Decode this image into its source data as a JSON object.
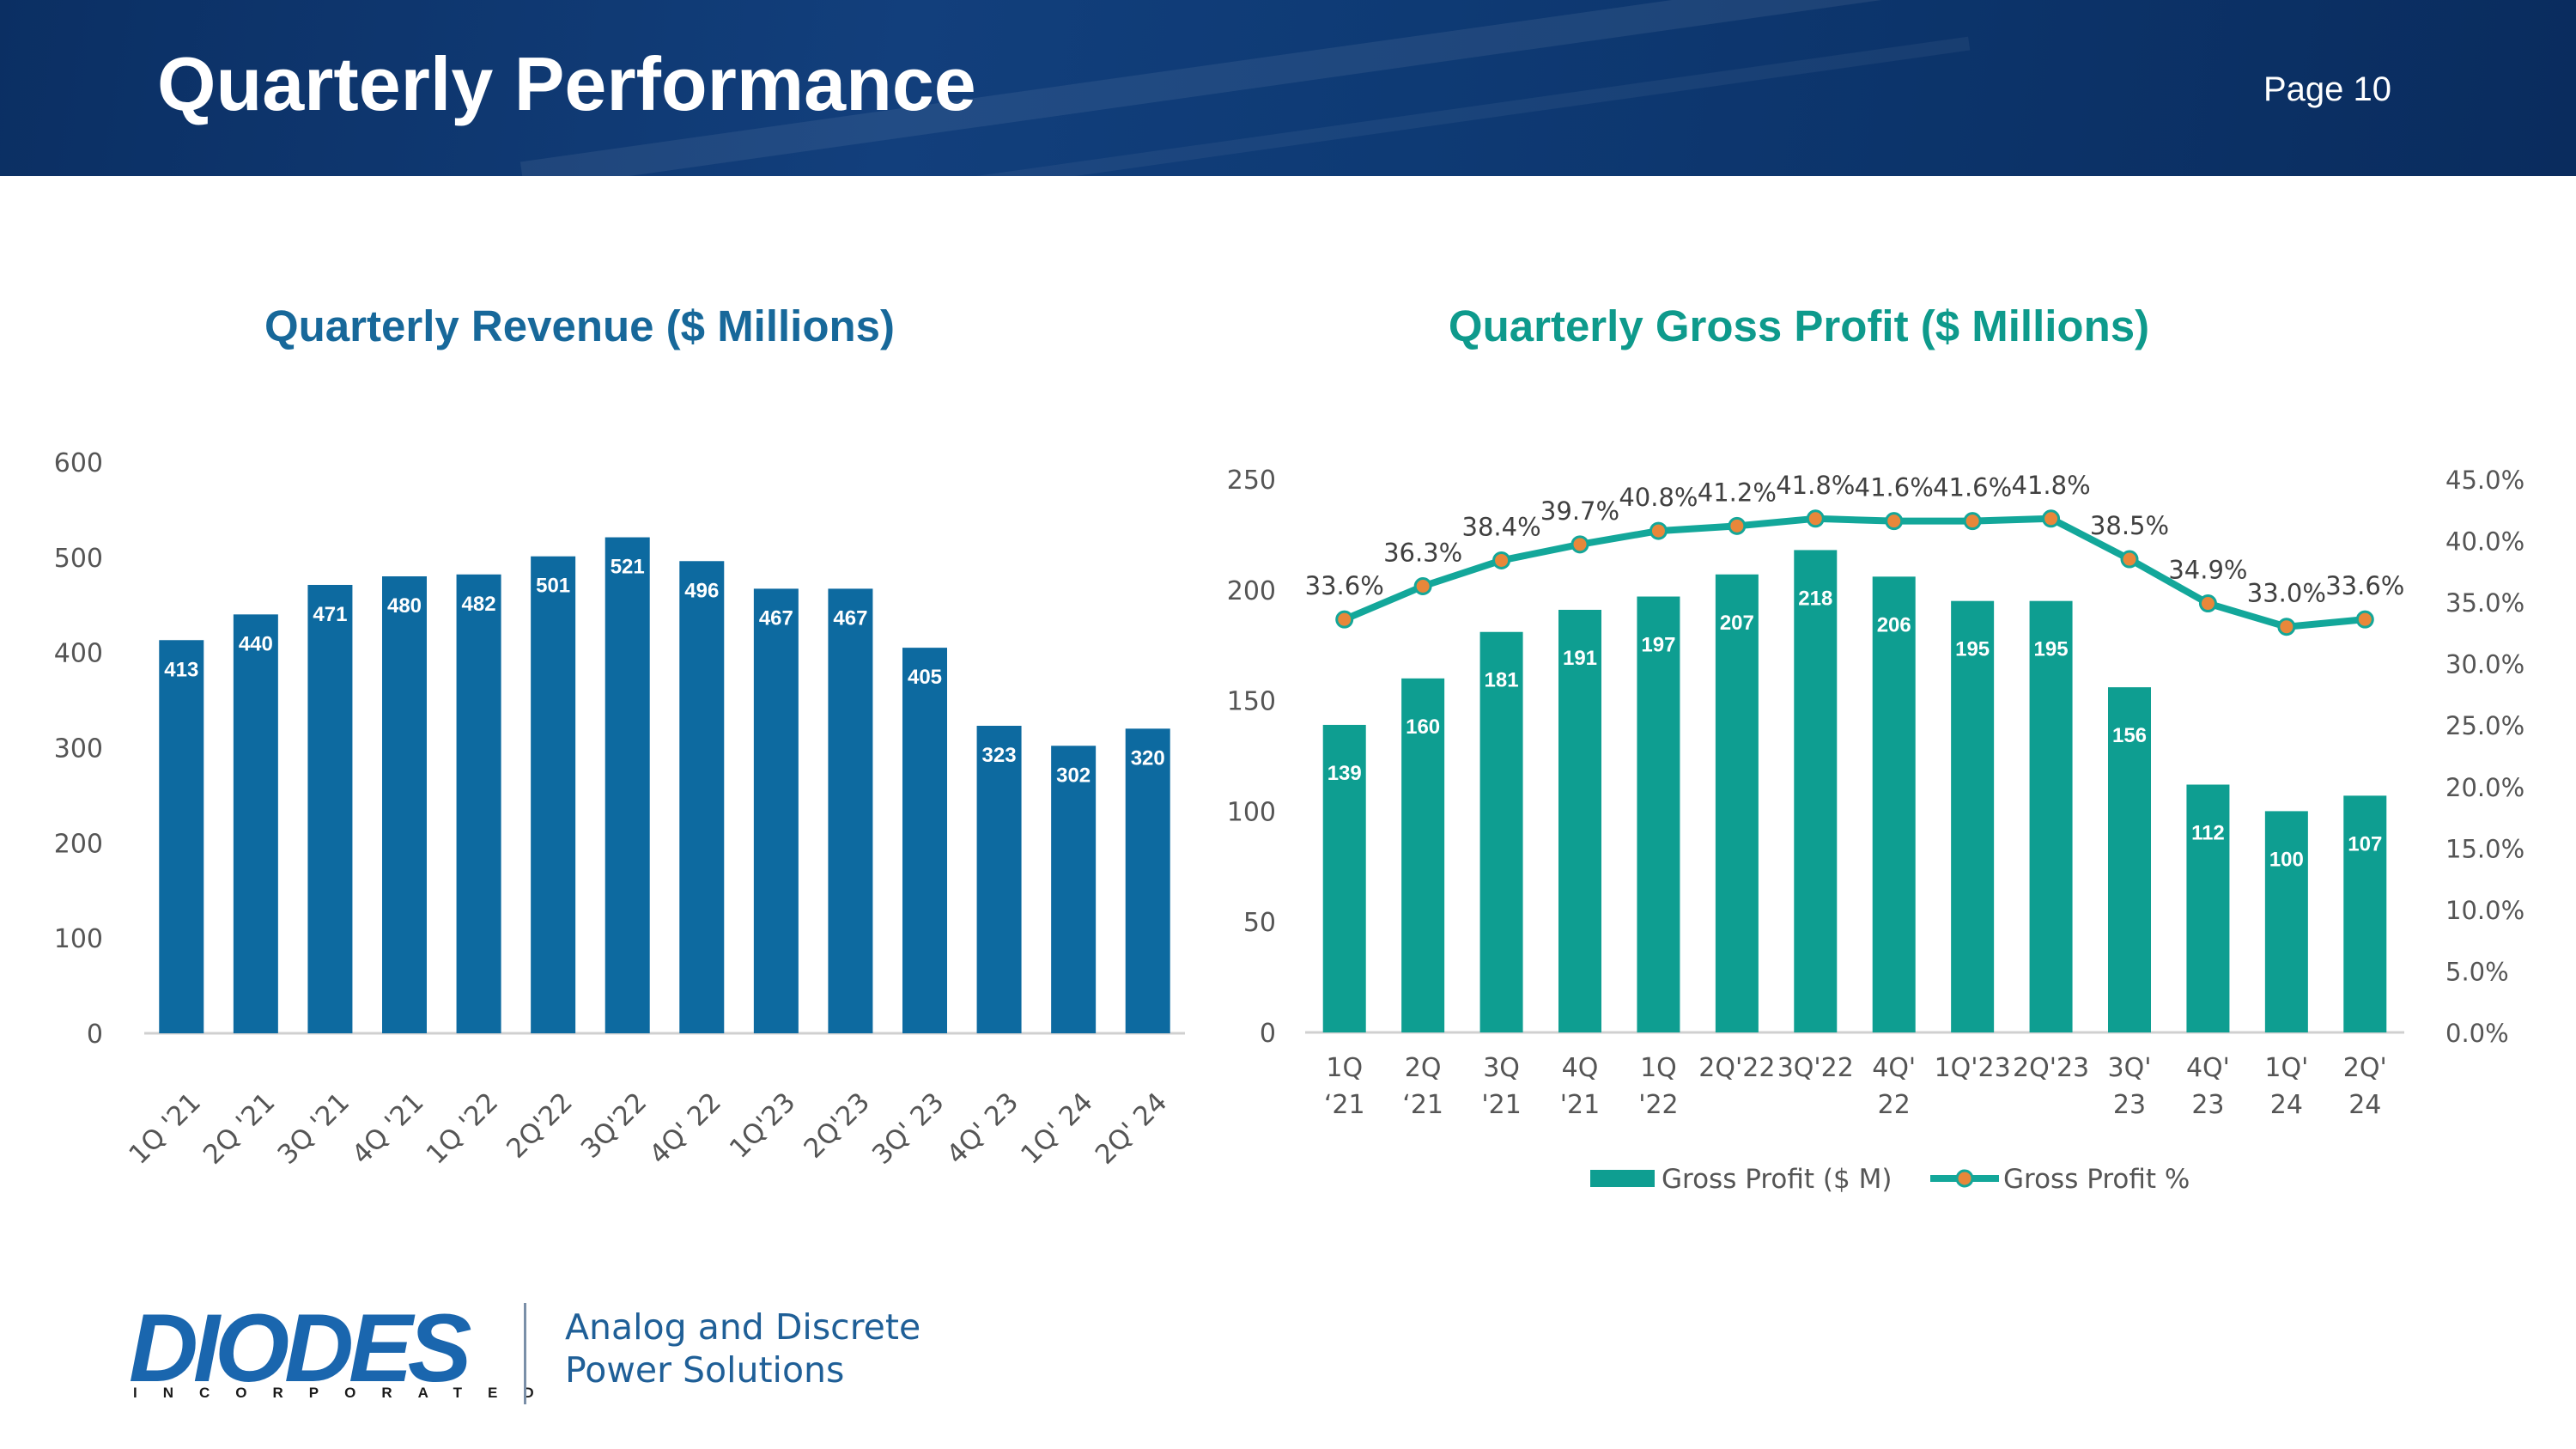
{
  "header": {
    "title": "Quarterly Performance",
    "page": "Page 10"
  },
  "colors": {
    "revenue": "#0d6aa0",
    "gross_profit": "#0e9e91",
    "line": "#13a79a",
    "marker": "#e8873a",
    "header": "#0d3670"
  },
  "chart_data": [
    {
      "type": "bar",
      "title": "Quarterly Revenue ($ Millions)",
      "categories": [
        "1Q '21",
        "2Q '21",
        "3Q '21",
        "4Q '21",
        "1Q '22",
        "2Q'22",
        "3Q'22",
        "4Q' 22",
        "1Q'23",
        "2Q'23",
        "3Q' 23",
        "4Q' 23",
        "1Q' 24",
        "2Q' 24"
      ],
      "values": [
        413,
        440,
        471,
        480,
        482,
        501,
        521,
        496,
        467,
        467,
        405,
        323,
        302,
        320
      ],
      "data_labels": [
        "413",
        "440",
        "471",
        "480",
        "482",
        "501",
        "521",
        "496",
        "467",
        "467",
        "405",
        "323",
        "302",
        "320"
      ],
      "ylim": [
        0,
        600
      ],
      "yticks": [
        "0",
        "100",
        "200",
        "300",
        "400",
        "500",
        "600"
      ],
      "xlabel": "",
      "ylabel": "",
      "grid": false
    },
    {
      "type": "bar+line",
      "title": "Quarterly Gross Profit ($ Millions)",
      "categories": [
        [
          "1Q",
          "‘21"
        ],
        [
          "2Q",
          "‘21"
        ],
        [
          "3Q",
          "'21"
        ],
        [
          "4Q",
          "'21"
        ],
        [
          "1Q",
          "'22"
        ],
        [
          "2Q'22",
          ""
        ],
        [
          "3Q'22",
          ""
        ],
        [
          "4Q'",
          "22"
        ],
        [
          "1Q'23",
          ""
        ],
        [
          "2Q'23",
          ""
        ],
        [
          "3Q'",
          "23"
        ],
        [
          "4Q'",
          "23"
        ],
        [
          "1Q'",
          "24"
        ],
        [
          "2Q'",
          "24"
        ]
      ],
      "series": [
        {
          "name": "Gross Profit ($ M)",
          "kind": "bar",
          "axis": "left",
          "values": [
            139,
            160,
            181,
            191,
            197,
            207,
            218,
            206,
            195,
            195,
            156,
            112,
            100,
            107
          ],
          "data_labels": [
            "139",
            "160",
            "181",
            "191",
            "197",
            "207",
            "218",
            "206",
            "195",
            "195",
            "156",
            "112",
            "100",
            "107"
          ]
        },
        {
          "name": "Gross Profit %",
          "kind": "line",
          "axis": "right",
          "values": [
            33.6,
            36.3,
            38.4,
            39.7,
            40.8,
            41.2,
            41.8,
            41.6,
            41.6,
            41.8,
            38.5,
            34.9,
            33.0,
            33.6
          ],
          "data_labels": [
            "33.6%",
            "36.3%",
            "38.4%",
            "39.7%",
            "40.8%",
            "41.2%",
            "41.8%",
            "41.6%",
            "41.6%",
            "41.8%",
            "38.5%",
            "34.9%",
            "33.0%",
            "33.6%"
          ]
        }
      ],
      "ylim": [
        0,
        250
      ],
      "yticks": [
        "0",
        "50",
        "100",
        "150",
        "200",
        "250"
      ],
      "y2lim": [
        0,
        45
      ],
      "y2ticks": [
        "0.0%",
        "5.0%",
        "10.0%",
        "15.0%",
        "20.0%",
        "25.0%",
        "30.0%",
        "35.0%",
        "40.0%",
        "45.0%"
      ],
      "legend": {
        "placement": "bottom",
        "items": [
          "Gross Profit ($ M)",
          "Gross Profit %"
        ]
      }
    }
  ],
  "footer": {
    "logo_text": "DIODES",
    "logo_subtext": "INCORPORATED",
    "tagline_line1": "Analog and Discrete",
    "tagline_line2": "Power Solutions"
  }
}
